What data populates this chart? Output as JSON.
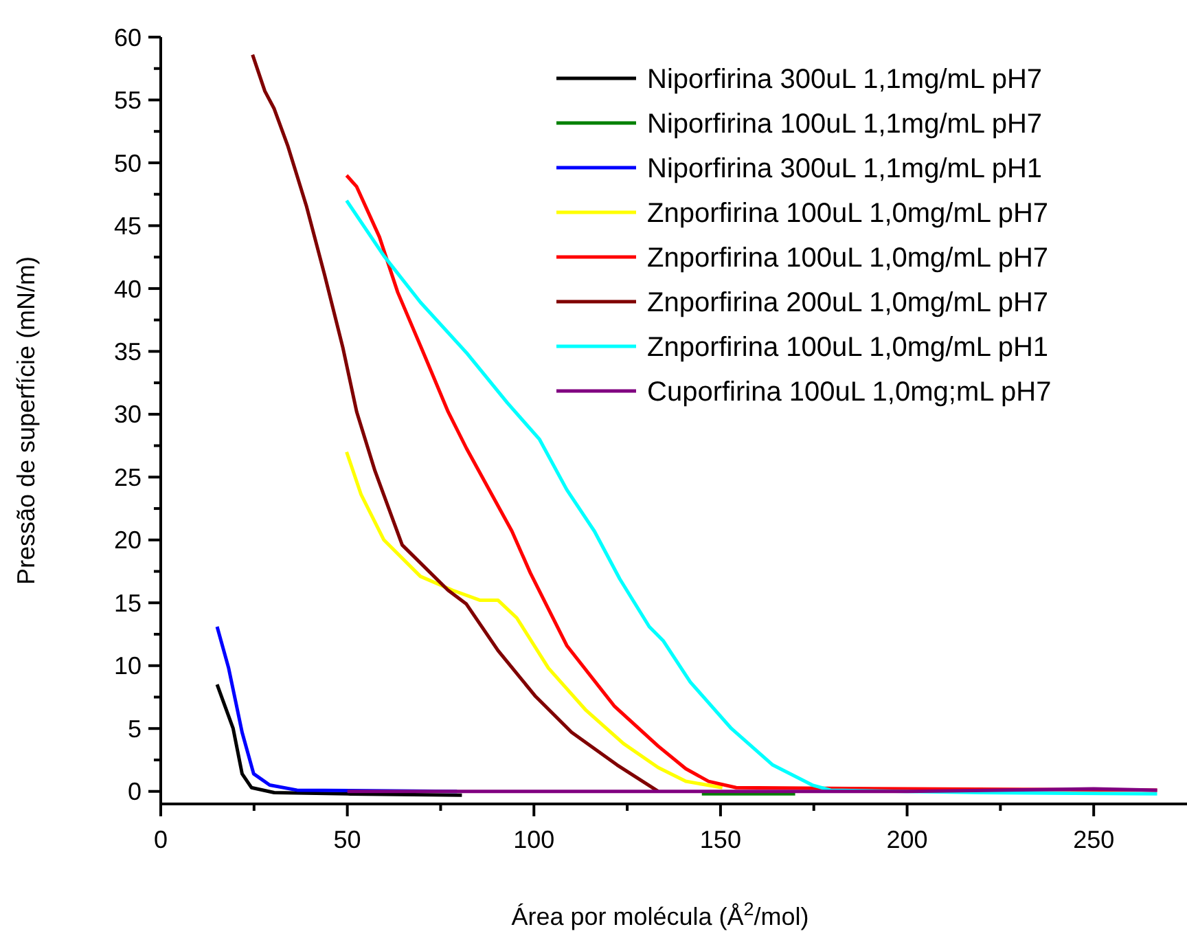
{
  "chart_data": {
    "type": "line",
    "xlabel": "Área por molécula (Å$^{2}$/mol)",
    "ylabel": "Pressão de superfície (mN/m)",
    "xlim": [
      0,
      275
    ],
    "ylim": [
      -1,
      60
    ],
    "xticks": [
      0,
      {
        "value": 25,
        "label": null
      },
      50,
      {
        "value": 75,
        "label": null
      },
      100,
      {
        "value": 125,
        "label": null
      },
      150,
      {
        "value": 175,
        "label": null
      },
      200,
      {
        "value": 225,
        "label": null
      },
      250
    ],
    "yticks": [
      0,
      {
        "value": 2.5,
        "label": null
      },
      5,
      {
        "value": 7.5,
        "label": null
      },
      10,
      {
        "value": 12.5,
        "label": null
      },
      15,
      {
        "value": 17.5,
        "label": null
      },
      20,
      {
        "value": 22.5,
        "label": null
      },
      25,
      {
        "value": 27.5,
        "label": null
      },
      30,
      {
        "value": 32.5,
        "label": null
      },
      35,
      {
        "value": 37.5,
        "label": null
      },
      40,
      {
        "value": 42.5,
        "label": null
      },
      45,
      {
        "value": 47.5,
        "label": null
      },
      50,
      {
        "value": 52.5,
        "label": null
      },
      55,
      {
        "value": 57.5,
        "label": null
      },
      60
    ],
    "grid": false,
    "legend": "top right",
    "marker": "none",
    "line_style": "solid",
    "series": [
      {
        "name": "Niporfirina 300uL 1,1mg/mL pH7",
        "color": "#000000",
        "x": [
          15.1,
          19.4,
          21.8,
          24.3,
          30.4,
          50,
          80.7
        ],
        "values": [
          8.5,
          5.0,
          1.4,
          0.3,
          -0.1,
          -0.2,
          -0.3
        ]
      },
      {
        "name": "Niporfirina 100uL 1,1mg/mL pH7",
        "color": "#008000",
        "x": [
          145,
          170
        ],
        "values": [
          -0.2,
          -0.2
        ]
      },
      {
        "name": "Niporfirina 300uL 1,1mg/mL pH1",
        "color": "#0000ff",
        "x": [
          15.1,
          18.2,
          21.8,
          24.9,
          29.2,
          36.5,
          79.4
        ],
        "values": [
          13.1,
          9.8,
          4.7,
          1.4,
          0.5,
          0.1,
          0
        ]
      },
      {
        "name": "Znporfirina 100uL 1,0mg/mL pH7",
        "color": "#ffff00",
        "x": [
          49.8,
          53.7,
          59.8,
          69.6,
          78.2,
          85.6,
          90.4,
          95.4,
          103.9,
          113.8,
          124,
          133.3,
          140.7,
          150.5
        ],
        "values": [
          27.0,
          23.6,
          20.0,
          17.1,
          16.0,
          15.2,
          15.2,
          13.8,
          9.8,
          6.5,
          3.8,
          1.9,
          0.8,
          0.3
        ]
      },
      {
        "name": "Znporfirina 100uL 1,0mg/mL pH7",
        "color": "#ff0000",
        "x": [
          49.8,
          52.5,
          58.6,
          63.5,
          70.8,
          77.0,
          81.9,
          94.1,
          99.0,
          108.8,
          121.5,
          133.3,
          140.7,
          146.8,
          154.2,
          200,
          267
        ],
        "values": [
          49.0,
          48.1,
          44.1,
          39.7,
          34.6,
          30.2,
          27.3,
          20.7,
          17.4,
          11.6,
          6.8,
          3.6,
          1.8,
          0.8,
          0.3,
          0.2,
          0.1
        ]
      },
      {
        "name": "Znporfirina 200uL 1,0mg/mL pH7",
        "color": "#800000",
        "x": [
          24.6,
          27.9,
          30.4,
          34.1,
          39.0,
          43.9,
          48.8,
          52.5,
          57.4,
          64.7,
          77.0,
          81.9,
          90.4,
          100.3,
          110.1,
          122.3,
          133.3
        ],
        "values": [
          58.6,
          55.7,
          54.3,
          51.3,
          46.6,
          41.1,
          35.3,
          30.2,
          25.5,
          19.6,
          16.0,
          14.9,
          11.2,
          7.6,
          4.7,
          2.1,
          0
        ]
      },
      {
        "name": "Znporfirina 100uL 1,0mg/mL pH1",
        "color": "#00ffff",
        "x": [
          49.8,
          59.8,
          69.6,
          81.9,
          92.9,
          101.5,
          108.8,
          116.2,
          123,
          130.9,
          134.6,
          141.9,
          152.9,
          164.0,
          174.6,
          179.5,
          220,
          267
        ],
        "values": [
          47.0,
          42.6,
          38.9,
          34.9,
          30.9,
          28.0,
          24.0,
          20.7,
          16.9,
          13.1,
          12.0,
          8.7,
          5.0,
          2.1,
          0.5,
          0.1,
          -0.1,
          -0.2
        ]
      },
      {
        "name": "Cuporfirina 100uL 1,0mg;mL pH7",
        "color": "#800080",
        "x": [
          50,
          100,
          150,
          200,
          250,
          267
        ],
        "values": [
          0,
          0,
          0,
          0,
          0.2,
          0.1
        ]
      }
    ]
  }
}
